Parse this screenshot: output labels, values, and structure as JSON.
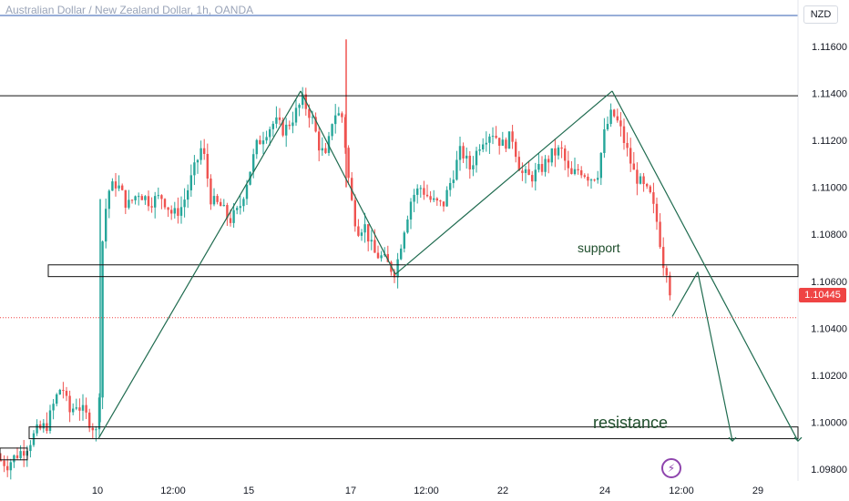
{
  "header": {
    "title": "Australian Dollar / New Zealand Dollar, 1h, OANDA",
    "currency": "NZD"
  },
  "price_tag": "1.10445",
  "logo_icon": "lightning-icon",
  "colors": {
    "up": "#26a69a",
    "down": "#ef5350",
    "lines": "#1f6b4f",
    "box": "#111111",
    "price_line": "#ef4444"
  },
  "chart_data": {
    "type": "candlestick",
    "ylim": [
      1.0975,
      1.1172
    ],
    "y_ticks": [
      "1.11600",
      "1.11400",
      "1.11200",
      "1.11000",
      "1.10800",
      "1.10600",
      "1.10400",
      "1.10200",
      "1.10000",
      "1.09800"
    ],
    "x_ticks": [
      "10",
      "12:00",
      "15",
      "17",
      "12:00",
      "22",
      "24",
      "12:00",
      "29"
    ],
    "last_price": 1.10445,
    "annotations": [
      {
        "text": "support",
        "price": 1.1065
      },
      {
        "text": "resistance",
        "price": 1.0987
      }
    ],
    "zones": [
      {
        "name": "upper-resistance-line",
        "price": 1.1139
      },
      {
        "name": "support-zone",
        "from": 1.1062,
        "to": 1.1067
      },
      {
        "name": "lower-zone",
        "from": 1.0993,
        "to": 1.0998
      },
      {
        "name": "left-small-zone",
        "from": 1.0984,
        "to": 1.0989
      }
    ],
    "price_path": [
      [
        0,
        1.0984
      ],
      [
        8,
        1.0982
      ],
      [
        18,
        1.0986
      ],
      [
        28,
        1.0989
      ],
      [
        40,
        1.0996
      ],
      [
        52,
        1.0999
      ],
      [
        60,
        1.1009
      ],
      [
        68,
        1.1016
      ],
      [
        76,
        1.1004
      ],
      [
        84,
        1.1008
      ],
      [
        94,
        1.1003
      ],
      [
        104,
        1.0997
      ],
      [
        108,
        1.0993
      ],
      [
        112,
        1.1075
      ],
      [
        118,
        1.1098
      ],
      [
        128,
        1.1102
      ],
      [
        140,
        1.1092
      ],
      [
        152,
        1.1098
      ],
      [
        164,
        1.1094
      ],
      [
        178,
        1.1096
      ],
      [
        190,
        1.1088
      ],
      [
        200,
        1.1092
      ],
      [
        212,
        1.1106
      ],
      [
        222,
        1.1118
      ],
      [
        232,
        1.1094
      ],
      [
        242,
        1.1092
      ],
      [
        252,
        1.1086
      ],
      [
        262,
        1.109
      ],
      [
        272,
        1.1104
      ],
      [
        282,
        1.1118
      ],
      [
        292,
        1.1124
      ],
      [
        302,
        1.1128
      ],
      [
        312,
        1.1124
      ],
      [
        322,
        1.113
      ],
      [
        332,
        1.1137
      ],
      [
        342,
        1.113
      ],
      [
        350,
        1.1118
      ],
      [
        358,
        1.1112
      ],
      [
        366,
        1.1132
      ],
      [
        376,
        1.113
      ],
      [
        384,
        1.1098
      ],
      [
        392,
        1.1082
      ],
      [
        400,
        1.1084
      ],
      [
        410,
        1.1072
      ],
      [
        420,
        1.107
      ],
      [
        428,
        1.1066
      ],
      [
        434,
        1.1064
      ],
      [
        442,
        1.108
      ],
      [
        452,
        1.1096
      ],
      [
        462,
        1.11
      ],
      [
        474,
        1.1094
      ],
      [
        486,
        1.1092
      ],
      [
        496,
        1.1104
      ],
      [
        506,
        1.1116
      ],
      [
        516,
        1.1108
      ],
      [
        528,
        1.112
      ],
      [
        540,
        1.1124
      ],
      [
        552,
        1.1118
      ],
      [
        562,
        1.1122
      ],
      [
        572,
        1.1106
      ],
      [
        582,
        1.1104
      ],
      [
        594,
        1.1108
      ],
      [
        606,
        1.1114
      ],
      [
        616,
        1.1116
      ],
      [
        626,
        1.1104
      ],
      [
        636,
        1.1108
      ],
      [
        648,
        1.1104
      ],
      [
        656,
        1.1106
      ],
      [
        664,
        1.1124
      ],
      [
        672,
        1.1132
      ],
      [
        680,
        1.1126
      ],
      [
        688,
        1.1116
      ],
      [
        696,
        1.1106
      ],
      [
        706,
        1.11
      ],
      [
        714,
        1.1096
      ],
      [
        722,
        1.1084
      ],
      [
        728,
        1.1068
      ],
      [
        734,
        1.1064
      ],
      [
        738,
        1.1042
      ]
    ],
    "trend_lines": [
      [
        [
          108,
          1.0993
        ],
        [
          330,
          1.1141
        ]
      ],
      [
        [
          330,
          1.1141
        ],
        [
          434,
          1.1063
        ]
      ],
      [
        [
          434,
          1.1063
        ],
        [
          672,
          1.1141
        ]
      ],
      [
        [
          672,
          1.1141
        ],
        [
          876,
          1.0992
        ]
      ],
      [
        [
          738,
          1.1045
        ],
        [
          766,
          1.1064
        ]
      ],
      [
        [
          766,
          1.1064
        ],
        [
          804,
          1.0992
        ]
      ]
    ],
    "spikes": [
      [
        380,
        1.1163,
        1.11
      ],
      [
        110,
        1.1,
        1.1095
      ]
    ]
  }
}
